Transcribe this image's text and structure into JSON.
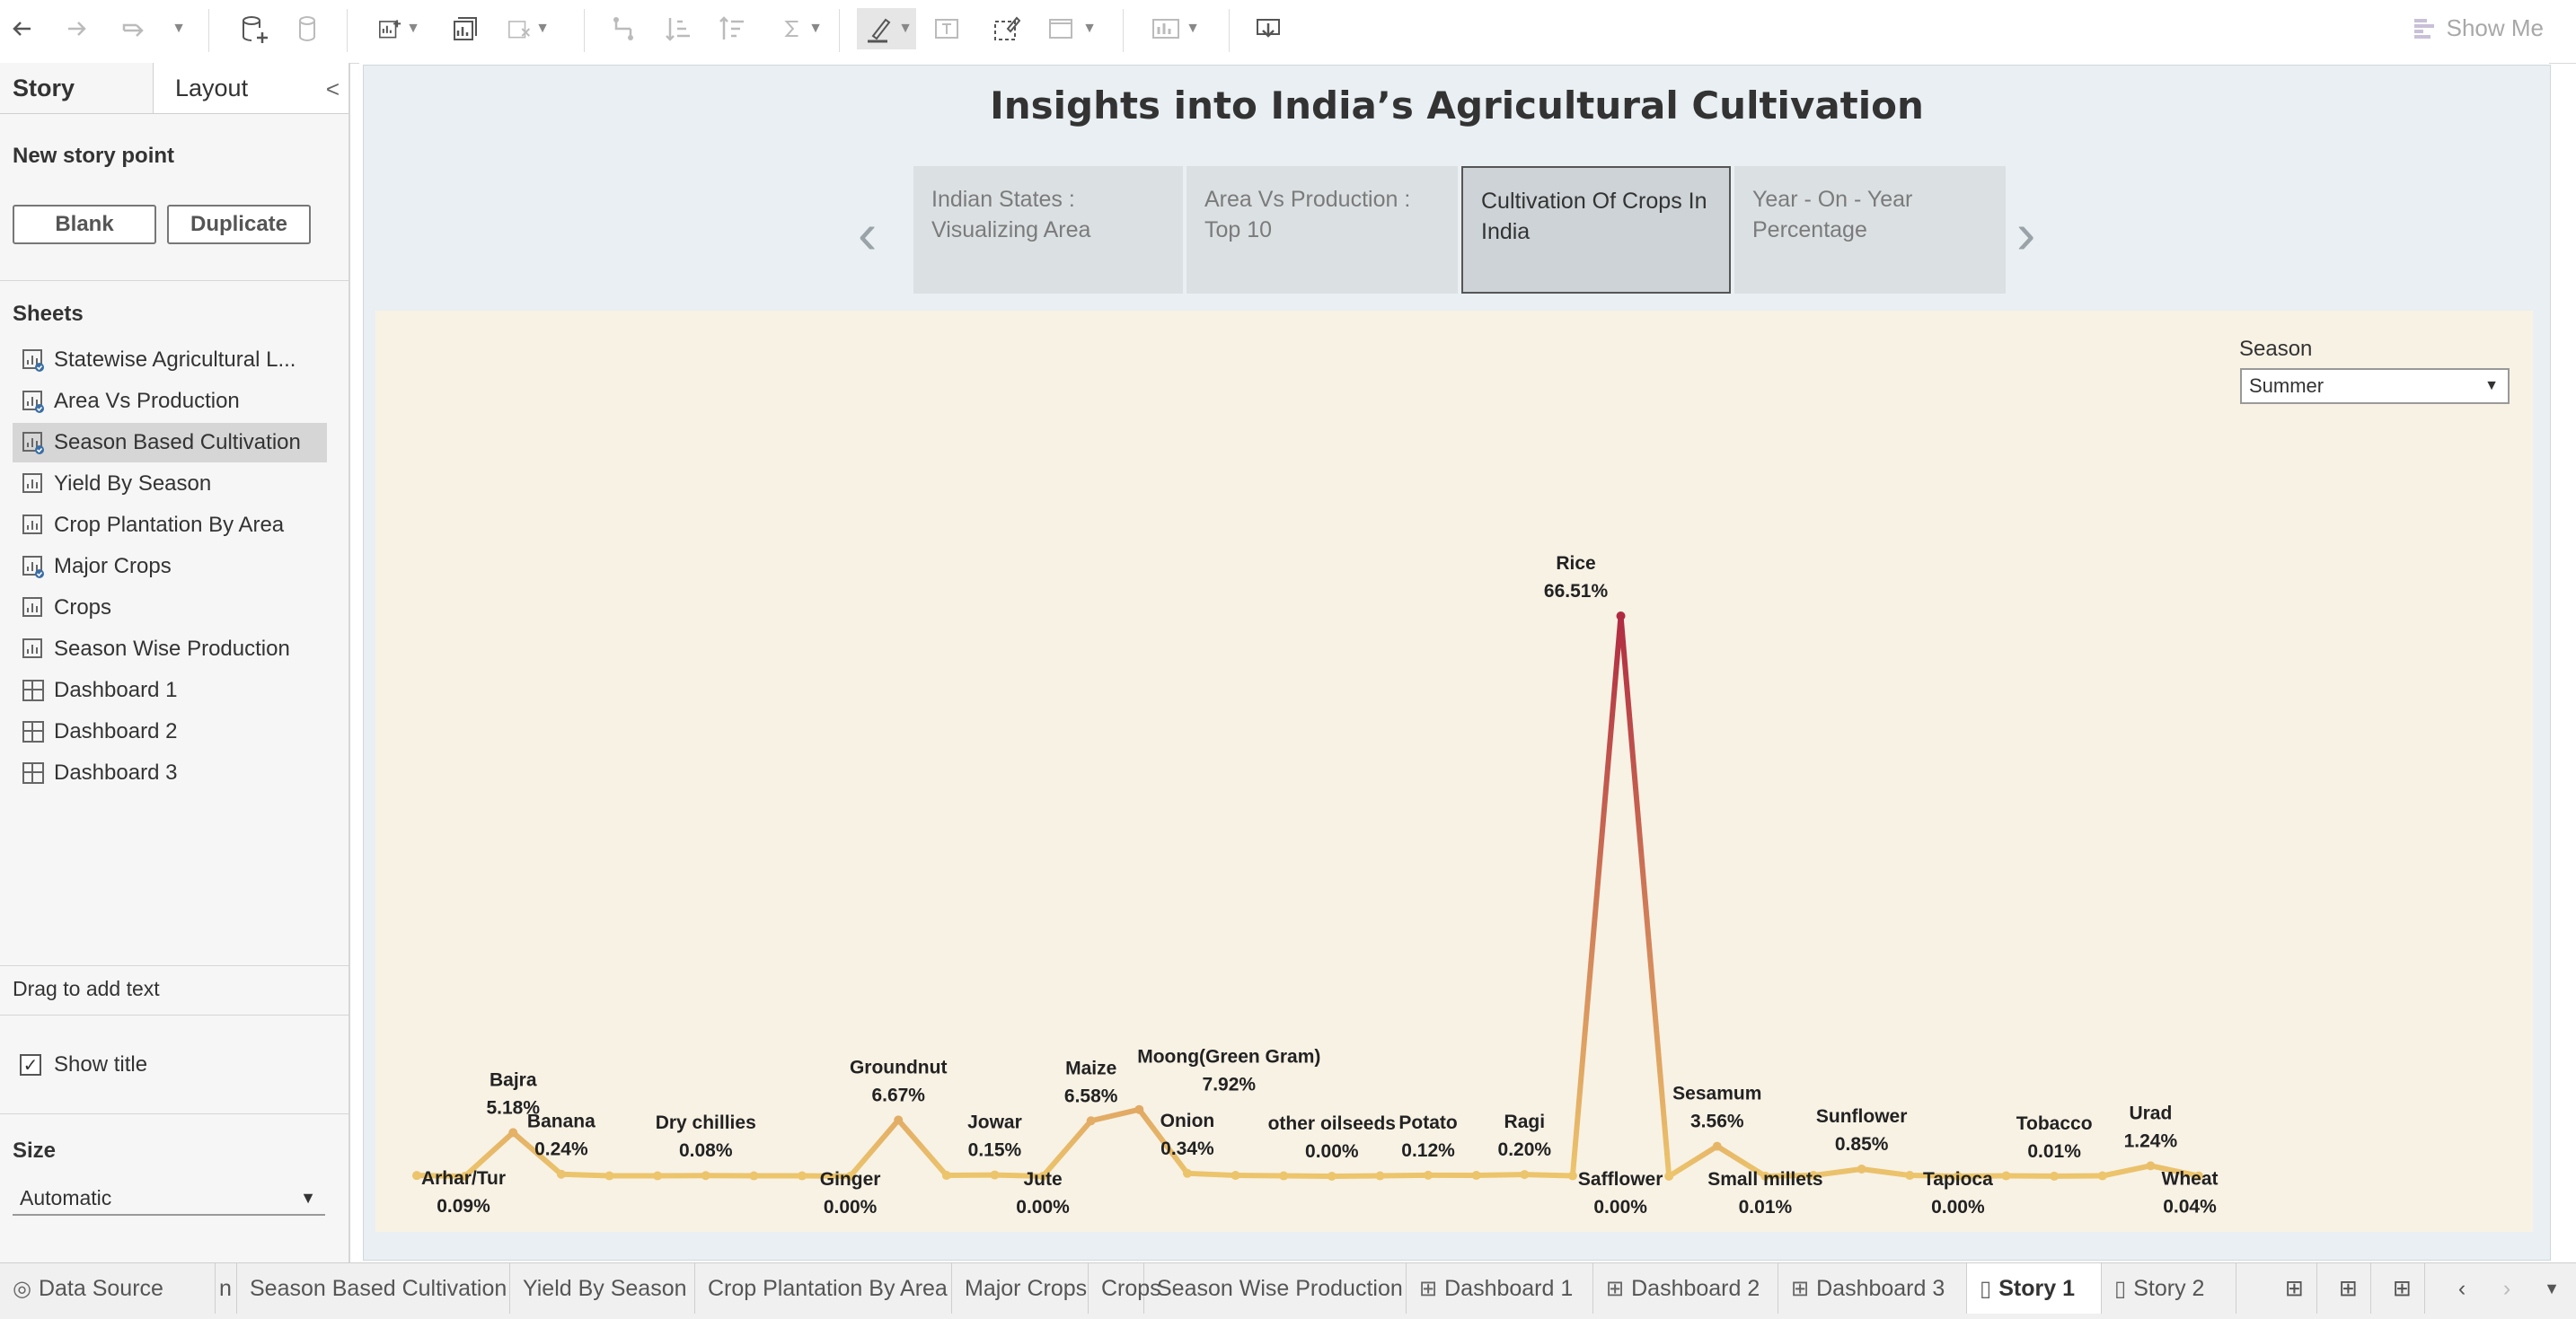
{
  "toolbar": {
    "show_me": "Show Me"
  },
  "left_panel": {
    "tab_story": "Story",
    "tab_layout": "Layout",
    "collapse": "<",
    "new_story_point": "New story point",
    "blank": "Blank",
    "duplicate": "Duplicate",
    "sheets_label": "Sheets",
    "sheets": [
      {
        "label": "Statewise Agricultural L...",
        "type": "sheet",
        "used": true
      },
      {
        "label": "Area Vs Production",
        "type": "sheet",
        "used": true
      },
      {
        "label": "Season Based Cultivation",
        "type": "sheet",
        "used": true,
        "selected": true
      },
      {
        "label": "Yield By Season",
        "type": "sheet",
        "used": false
      },
      {
        "label": "Crop Plantation By Area",
        "type": "sheet",
        "used": false
      },
      {
        "label": "Major Crops",
        "type": "sheet",
        "used": true
      },
      {
        "label": "Crops",
        "type": "sheet",
        "used": false
      },
      {
        "label": "Season Wise Production",
        "type": "sheet",
        "used": false
      },
      {
        "label": "Dashboard 1",
        "type": "dashboard",
        "used": false
      },
      {
        "label": "Dashboard 2",
        "type": "dashboard",
        "used": false
      },
      {
        "label": "Dashboard 3",
        "type": "dashboard",
        "used": false
      }
    ],
    "drag_text": "Drag to add text",
    "show_title": "Show title",
    "size_label": "Size",
    "size_value": "Automatic"
  },
  "story": {
    "title": "Insights into India’s Agricultural Cultivation",
    "points": [
      "Indian States : Visualizing Area",
      "Area Vs Production : Top 10",
      "Cultivation Of Crops In India",
      "Year - On - Year Percentage"
    ],
    "active_point": 2,
    "season_label": "Season",
    "season_value": "Summer"
  },
  "chart_data": {
    "type": "line",
    "x": [
      "Arhar/Tur",
      "",
      "Bajra",
      "Banana",
      "",
      "",
      "Dry chillies",
      "",
      "",
      "Ginger",
      "Groundnut",
      "",
      "Jowar",
      "Jute",
      "Maize",
      "Moong(Green Gram)",
      "Onion",
      "",
      "",
      "other oilseeds",
      "",
      "Potato",
      "",
      "Ragi",
      "",
      "Rice",
      "Safflower",
      "Sesamum",
      "Small millets",
      "",
      "Sunflower",
      "",
      "Tapioca",
      "",
      "Tobacco",
      "",
      "Urad",
      "Wheat"
    ],
    "values": [
      0.09,
      0,
      5.18,
      0.24,
      0.05,
      0.05,
      0.08,
      0.05,
      0.05,
      0.0,
      6.67,
      0.1,
      0.15,
      0.0,
      6.58,
      7.92,
      0.34,
      0.1,
      0.05,
      0.0,
      0.05,
      0.12,
      0.1,
      0.2,
      0.05,
      66.51,
      0.0,
      3.56,
      0.01,
      0.1,
      0.85,
      0.1,
      0.0,
      0.05,
      0.01,
      0.05,
      1.24,
      0.04
    ],
    "labels": [
      {
        "i": 0,
        "name": "Arhar/Tur",
        "pct": "0.09%",
        "pos": "below"
      },
      {
        "i": 2,
        "name": "Bajra",
        "pct": "5.18%",
        "pos": "above"
      },
      {
        "i": 3,
        "name": "Banana",
        "pct": "0.24%",
        "pos": "above"
      },
      {
        "i": 6,
        "name": "Dry chillies",
        "pct": "0.08%",
        "pos": "above"
      },
      {
        "i": 9,
        "name": "Ginger",
        "pct": "0.00%",
        "pos": "below"
      },
      {
        "i": 10,
        "name": "Groundnut",
        "pct": "6.67%",
        "pos": "above"
      },
      {
        "i": 12,
        "name": "Jowar",
        "pct": "0.15%",
        "pos": "above"
      },
      {
        "i": 13,
        "name": "Jute",
        "pct": "0.00%",
        "pos": "below"
      },
      {
        "i": 14,
        "name": "Maize",
        "pct": "6.58%",
        "pos": "above"
      },
      {
        "i": 15,
        "name": "Moong(Green Gram)",
        "pct": "7.92%",
        "pos": "above"
      },
      {
        "i": 16,
        "name": "Onion",
        "pct": "0.34%",
        "pos": "above"
      },
      {
        "i": 19,
        "name": "other oilseeds",
        "pct": "0.00%",
        "pos": "above"
      },
      {
        "i": 21,
        "name": "Potato",
        "pct": "0.12%",
        "pos": "above"
      },
      {
        "i": 23,
        "name": "Ragi",
        "pct": "0.20%",
        "pos": "above"
      },
      {
        "i": 25,
        "name": "Rice",
        "pct": "66.51%",
        "pos": "above"
      },
      {
        "i": 26,
        "name": "Safflower",
        "pct": "0.00%",
        "pos": "below"
      },
      {
        "i": 27,
        "name": "Sesamum",
        "pct": "3.56%",
        "pos": "above"
      },
      {
        "i": 28,
        "name": "Small millets",
        "pct": "0.01%",
        "pos": "below"
      },
      {
        "i": 30,
        "name": "Sunflower",
        "pct": "0.85%",
        "pos": "above"
      },
      {
        "i": 32,
        "name": "Tapioca",
        "pct": "0.00%",
        "pos": "below"
      },
      {
        "i": 34,
        "name": "Tobacco",
        "pct": "0.01%",
        "pos": "above"
      },
      {
        "i": 36,
        "name": "Urad",
        "pct": "1.24%",
        "pos": "above"
      },
      {
        "i": 37,
        "name": "Wheat",
        "pct": "0.04%",
        "pos": "below"
      }
    ],
    "ylim": [
      0,
      70
    ],
    "color_low": "#ecc56c",
    "color_high": "#b02b41"
  },
  "bottom_tabs": [
    {
      "label": "n",
      "type": "source-fragment"
    },
    {
      "label": "Season Based Cultivation",
      "type": "sheet"
    },
    {
      "label": "Yield By Season",
      "type": "sheet"
    },
    {
      "label": "Crop Plantation By Area",
      "type": "sheet"
    },
    {
      "label": "Major Crops",
      "type": "sheet"
    },
    {
      "label": "Crops",
      "type": "sheet"
    },
    {
      "label": "Season Wise Production",
      "type": "sheet"
    },
    {
      "label": "Dashboard 1",
      "type": "dashboard"
    },
    {
      "label": "Dashboard 2",
      "type": "dashboard"
    },
    {
      "label": "Dashboard 3",
      "type": "dashboard"
    },
    {
      "label": "Story 1",
      "type": "story",
      "active": true
    },
    {
      "label": "Story 2",
      "type": "story"
    }
  ],
  "data_source_tab": "Data Source"
}
